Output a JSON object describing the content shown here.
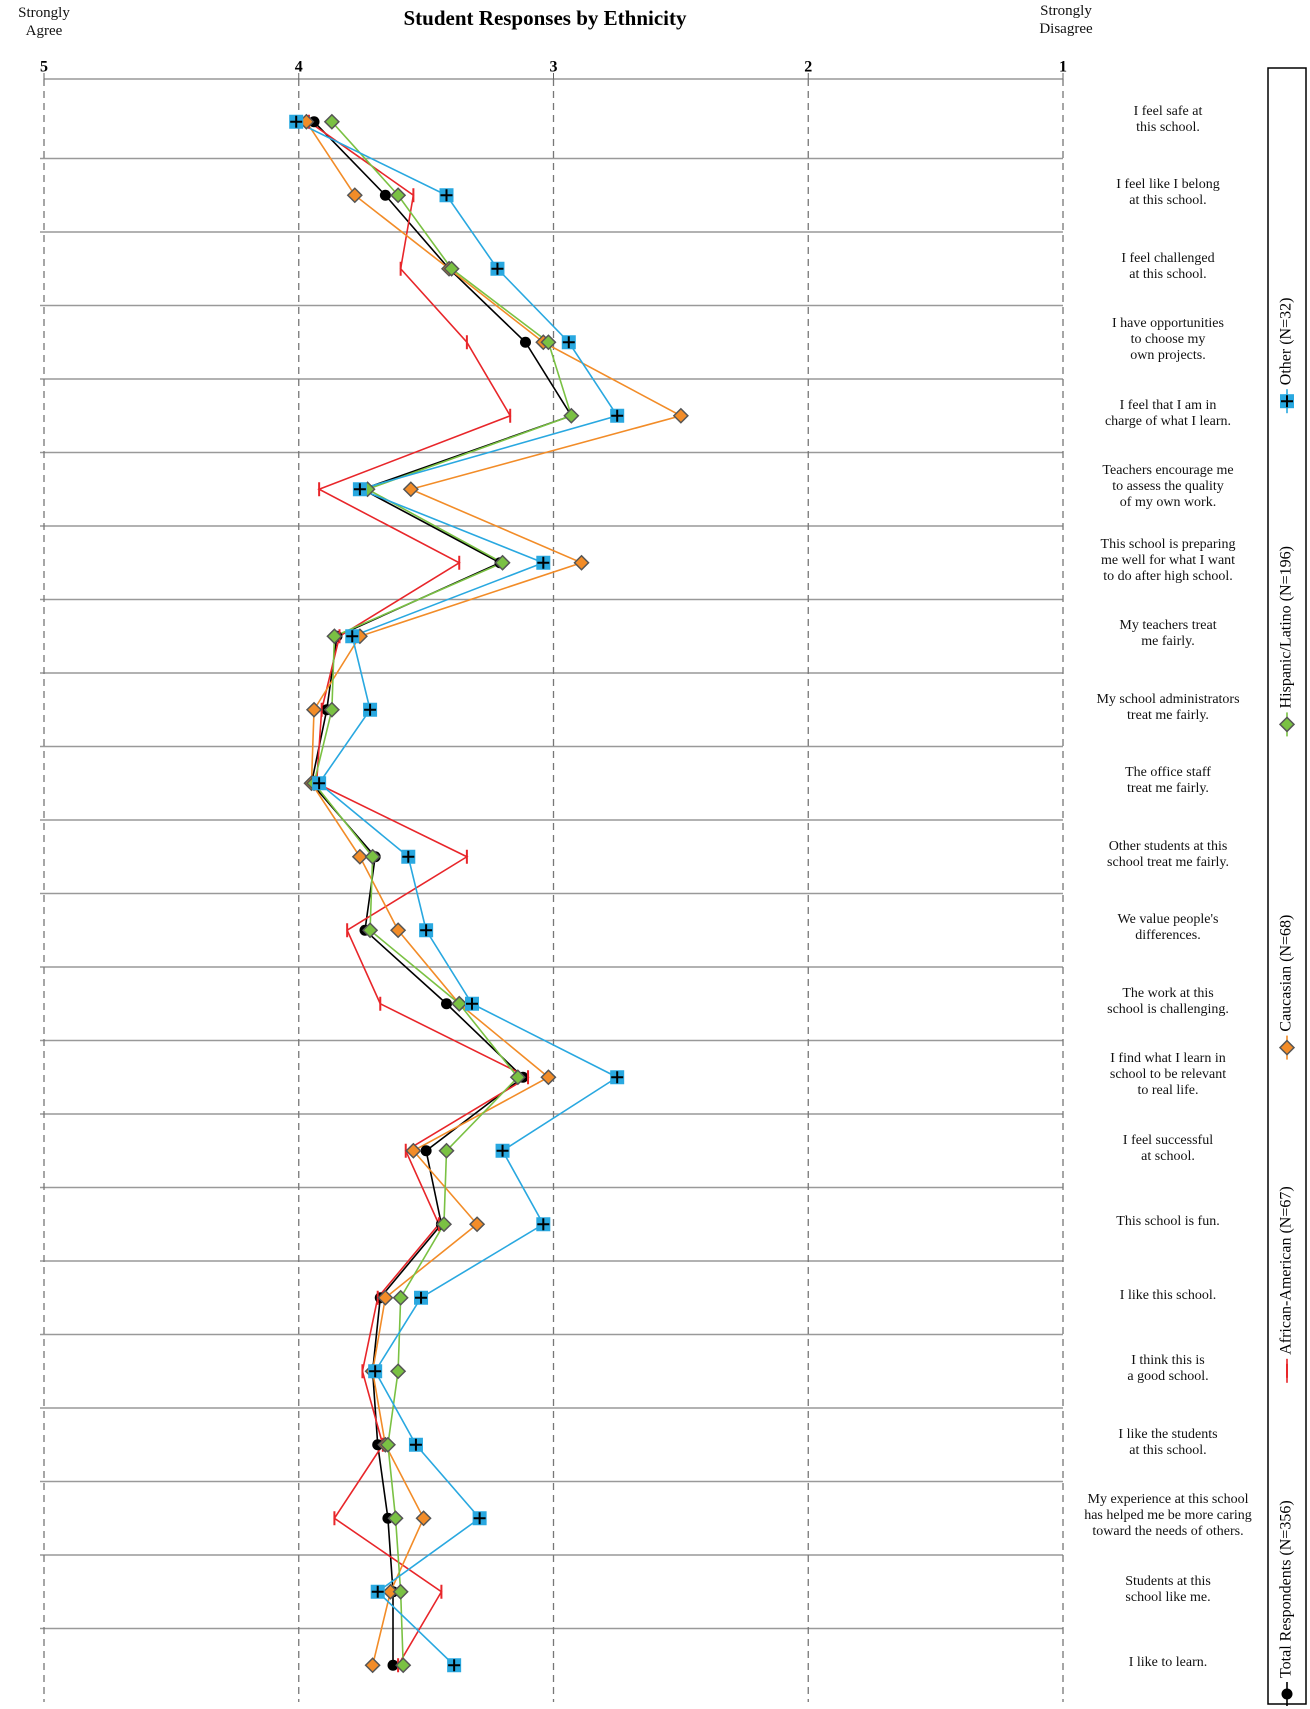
{
  "chart_data": {
    "type": "profile-line",
    "title": "Student Responses by Ethnicity",
    "left_label": "Strongly\nAgree",
    "right_label": "Strongly\nDisagree",
    "xlim": [
      5,
      1
    ],
    "xticks": [
      5,
      4,
      3,
      2,
      1
    ],
    "grid": true,
    "legend": "right",
    "categories": [
      "I feel safe at\nthis school.",
      "I feel like I belong\nat this school.",
      "I feel challenged\nat this school.",
      "I have opportunities\nto choose my\nown projects.",
      "I feel that I am in\ncharge of what I learn.",
      "Teachers encourage me\nto assess the quality\nof my own work.",
      "This school is preparing\nme well for what I want\nto do after high school.",
      "My teachers treat\nme fairly.",
      "My school administrators\ntreat me fairly.",
      "The office staff\ntreat me fairly.",
      "Other students at this\nschool treat me fairly.",
      "We value people's\ndifferences.",
      "The work at this\nschool is challenging.",
      "I find what I learn in\nschool to be relevant\nto real life.",
      "I feel successful\nat school.",
      "This school is fun.",
      "I like this school.",
      "I think this is\na good school.",
      "I like the students\nat this school.",
      "My experience at this school\nhas helped me be more caring\ntoward the needs of others.",
      "Students at this\nschool like me.",
      "I like to learn."
    ],
    "series": [
      {
        "name": "Total Respondents (N=356)",
        "color": "#000000",
        "marker": "circle",
        "values": [
          3.94,
          3.66,
          3.41,
          3.11,
          2.93,
          3.75,
          3.21,
          3.85,
          3.89,
          3.95,
          3.7,
          3.74,
          3.42,
          3.12,
          3.5,
          3.44,
          3.68,
          3.71,
          3.69,
          3.65,
          3.63,
          3.63
        ]
      },
      {
        "name": "African-American (N=67)",
        "color": "#e8262a",
        "marker": "tick",
        "values": [
          3.96,
          3.55,
          3.6,
          3.34,
          3.17,
          3.92,
          3.37,
          3.84,
          3.91,
          3.93,
          3.34,
          3.81,
          3.68,
          3.1,
          3.58,
          3.45,
          3.69,
          3.75,
          3.67,
          3.86,
          3.44,
          3.61
        ]
      },
      {
        "name": "Caucasian (N=68)",
        "color": "#f28c28",
        "marker": "diamond",
        "values": [
          3.97,
          3.78,
          3.41,
          3.04,
          2.5,
          3.56,
          2.89,
          3.76,
          3.94,
          3.95,
          3.76,
          3.61,
          3.37,
          3.02,
          3.55,
          3.3,
          3.66,
          3.71,
          3.66,
          3.51,
          3.64,
          3.71
        ]
      },
      {
        "name": "Hispanic/Latino (N=196)",
        "color": "#7ac143",
        "marker": "diamond",
        "values": [
          3.87,
          3.61,
          3.4,
          3.02,
          2.93,
          3.73,
          3.2,
          3.86,
          3.87,
          3.94,
          3.71,
          3.72,
          3.37,
          3.14,
          3.42,
          3.43,
          3.6,
          3.61,
          3.65,
          3.62,
          3.6,
          3.59
        ]
      },
      {
        "name": "Other (N=32)",
        "color": "#29a8e0",
        "marker": "plus-square",
        "values": [
          4.01,
          3.42,
          3.22,
          2.94,
          2.75,
          3.76,
          3.04,
          3.79,
          3.72,
          3.92,
          3.57,
          3.5,
          3.32,
          2.75,
          3.2,
          3.04,
          3.52,
          3.7,
          3.54,
          3.29,
          3.69,
          3.39
        ]
      }
    ]
  }
}
